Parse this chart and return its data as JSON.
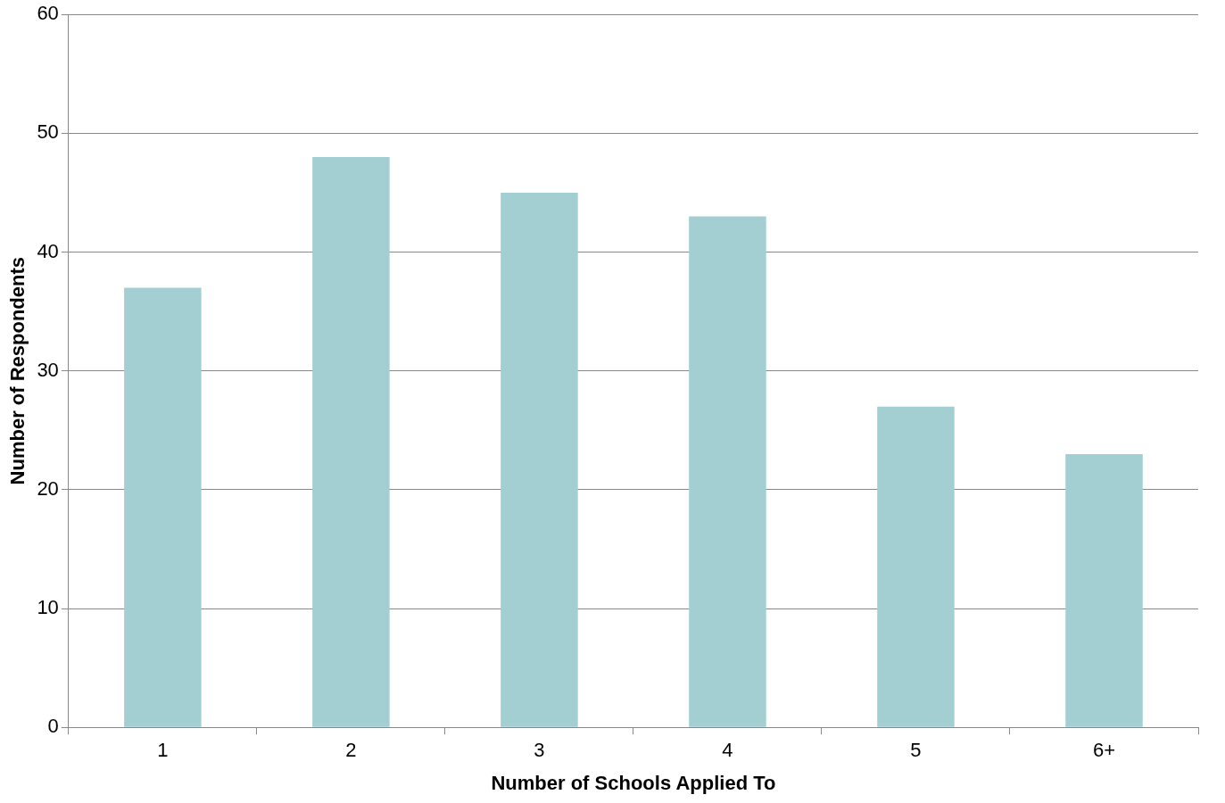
{
  "chart_data": {
    "type": "bar",
    "xlabel": "Number of Schools Applied To",
    "ylabel": "Number of Respondents",
    "categories": [
      "1",
      "2",
      "3",
      "4",
      "5",
      "6+"
    ],
    "values": [
      37,
      48,
      45,
      43,
      27,
      23
    ],
    "color": "#a3cfd3",
    "ylim": [
      0,
      60
    ],
    "yticks": [
      0,
      10,
      20,
      30,
      40,
      50,
      60
    ],
    "grid": "y",
    "legend": false
  }
}
